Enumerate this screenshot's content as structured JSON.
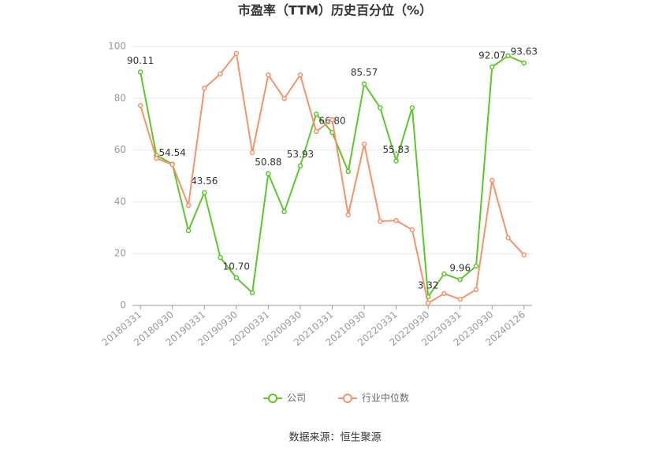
{
  "chart_data": {
    "type": "line",
    "title": "市盈率（TTM）历史百分位（%）",
    "source": "数据来源：恒生聚源",
    "categories": [
      "20180331",
      null,
      "20180930",
      null,
      "20190331",
      null,
      "20190930",
      null,
      "20200331",
      null,
      "20200930",
      null,
      "20210331",
      null,
      "20210930",
      null,
      "20220331",
      null,
      "20220930",
      null,
      "20230331",
      null,
      "20230930",
      null,
      "20240126"
    ],
    "series": [
      {
        "name": "公司",
        "color": "#5cc72c",
        "values": [
          90.11,
          58,
          54.54,
          28.9,
          43.56,
          18.5,
          10.7,
          4.9,
          50.88,
          36.2,
          53.93,
          73.9,
          66.8,
          51.7,
          85.57,
          76.3,
          55.83,
          76.3,
          3.32,
          12.2,
          9.96,
          15.2,
          92.07,
          96.4,
          93.63
        ],
        "value_labels": [
          "90.11",
          null,
          "54.54",
          null,
          "43.56",
          null,
          "10.70",
          null,
          "50.88",
          null,
          "53.93",
          null,
          "66.80",
          null,
          "85.57",
          null,
          "55.83",
          null,
          "3.32",
          null,
          "9.96",
          null,
          "92.07",
          null,
          "93.63"
        ]
      },
      {
        "name": "行业中位数",
        "color": "#f4936a",
        "values": [
          77.2,
          56.8,
          54.4,
          38.6,
          83.9,
          89.4,
          97.3,
          59,
          89,
          79.9,
          89,
          67.2,
          71.7,
          35,
          62.3,
          32.5,
          32.8,
          29.2,
          0.9,
          4.6,
          2.4,
          6.1,
          48.3,
          26.1,
          19.5
        ]
      }
    ],
    "ylim": [
      0,
      100
    ],
    "yticks": [
      0,
      20,
      40,
      60,
      80,
      100
    ],
    "grid": true,
    "legend": "bottom"
  }
}
